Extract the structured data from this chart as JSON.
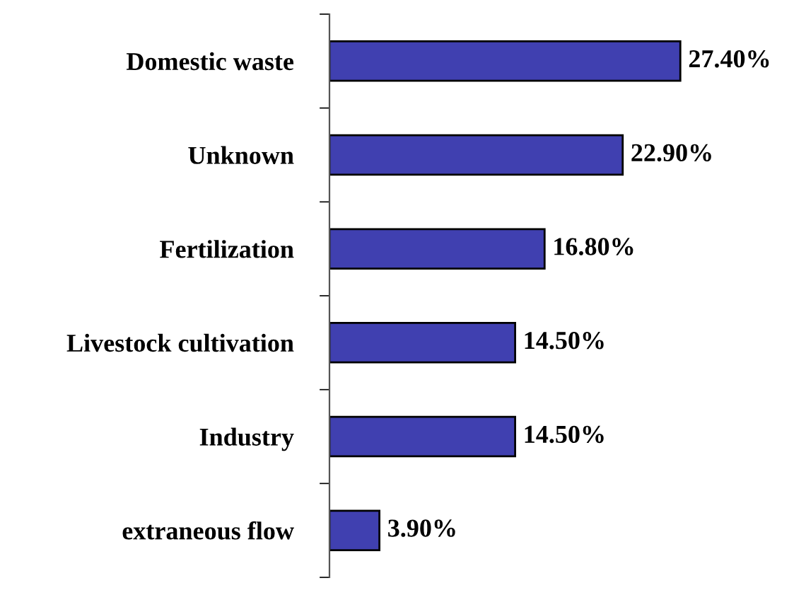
{
  "chart_data": {
    "type": "bar",
    "orientation": "horizontal",
    "categories": [
      "Domestic waste",
      "Unknown",
      "Fertilization",
      "Livestock cultivation",
      "Industry",
      "extraneous flow"
    ],
    "values": [
      27.4,
      22.9,
      16.8,
      14.5,
      14.5,
      3.9
    ],
    "value_labels": [
      "27.40%",
      "22.90%",
      "16.80%",
      "14.50%",
      "14.50%",
      "3.90%"
    ],
    "color": "#4040b0",
    "tick_labels": "y",
    "grid": false,
    "legend": false
  }
}
